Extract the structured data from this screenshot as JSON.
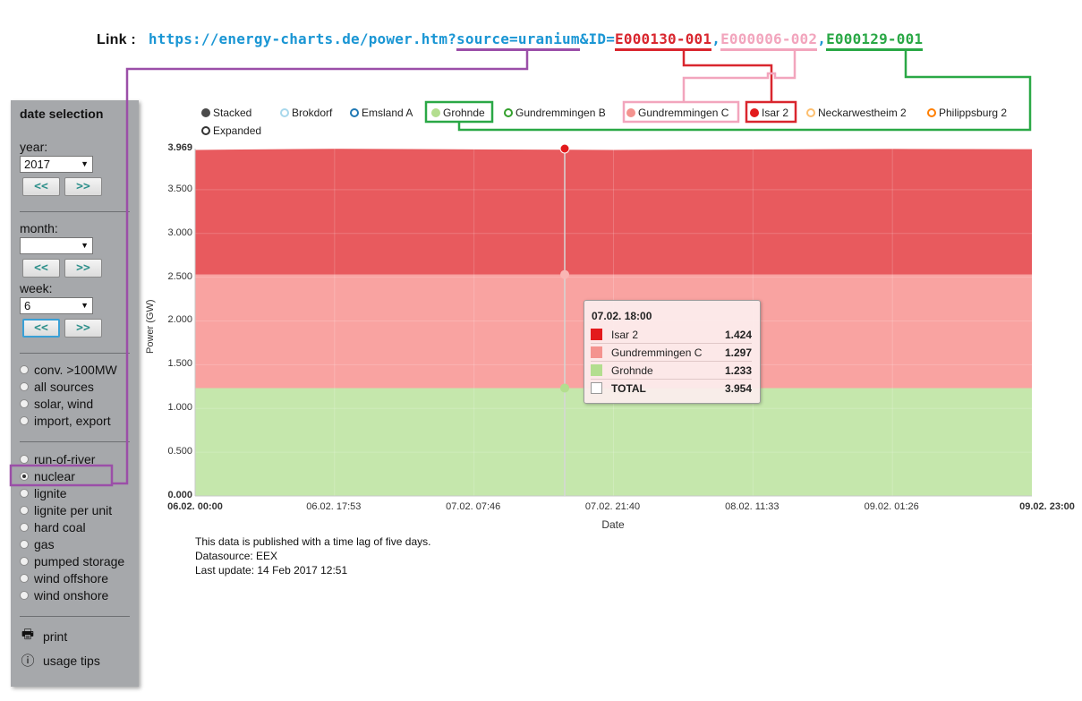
{
  "link": {
    "label": "Link :",
    "base": "https://energy-charts.de/power.htm?",
    "source_param": "source=uranium",
    "id_prefix": "&ID=",
    "ids": [
      "E000130-001",
      "E000006-002",
      "E000129-001"
    ],
    "separator": ","
  },
  "sidebar": {
    "title": "date selection",
    "year_label": "year:",
    "year_value": "2017",
    "month_label": "month:",
    "month_value": "",
    "week_label": "week:",
    "week_value": "6",
    "prev_label": "<<",
    "next_label": ">>",
    "sources": [
      "conv. >100MW",
      "all sources",
      "solar, wind",
      "import, export"
    ],
    "fuels": [
      "run-of-river",
      "nuclear",
      "lignite",
      "lignite per unit",
      "hard coal",
      "gas",
      "pumped storage",
      "wind offshore",
      "wind onshore"
    ],
    "selected_fuel": "nuclear",
    "print_label": "print",
    "tips_label": "usage tips"
  },
  "legend": [
    {
      "label": "Stacked",
      "color": "#4a4a4a",
      "filled": true
    },
    {
      "label": "Brokdorf",
      "color": "#a8d8ec",
      "filled": false
    },
    {
      "label": "Emsland A",
      "color": "#1f78b4",
      "filled": false
    },
    {
      "label": "Grohnde",
      "color": "#b3de8f",
      "filled": true
    },
    {
      "label": "Gundremmingen B",
      "color": "#33a02c",
      "filled": false
    },
    {
      "label": "Gundremmingen C",
      "color": "#f4938f",
      "filled": true
    },
    {
      "label": "Isar 2",
      "color": "#e31a1c",
      "filled": true
    },
    {
      "label": "Neckarwestheim 2",
      "color": "#fdbf6f",
      "filled": false
    },
    {
      "label": "Philippsburg 2",
      "color": "#ff7f00",
      "filled": false
    },
    {
      "label": "Expanded",
      "color": "#333333",
      "filled": false
    }
  ],
  "chart_data": {
    "type": "area",
    "stacked": true,
    "xlabel": "Date",
    "ylabel": "Power (GW)",
    "ylim": [
      0,
      3.969
    ],
    "yticks": [
      "0.000",
      "0.500",
      "1.000",
      "1.500",
      "2.000",
      "2.500",
      "3.000",
      "3.500",
      "3.969"
    ],
    "x_start_label": "06.02. 00:00",
    "x_end_label": "09.02. 23:00",
    "xticks": [
      "06.02. 17:53",
      "07.02. 07:46",
      "07.02. 21:40",
      "08.02. 11:33",
      "09.02. 01:26"
    ],
    "grid": true,
    "series": [
      {
        "name": "Grohnde",
        "color": "#c5e7ac",
        "values": [
          1.233,
          1.233,
          1.233,
          1.233,
          1.233,
          1.233,
          1.233
        ]
      },
      {
        "name": "Gundremmingen C",
        "color": "#f9a3a1",
        "values": [
          1.297,
          1.297,
          1.297,
          1.297,
          1.297,
          1.297,
          1.297
        ]
      },
      {
        "name": "Isar 2",
        "color": "#e85a5e",
        "values": [
          1.424,
          1.438,
          1.43,
          1.424,
          1.43,
          1.436,
          1.432
        ]
      }
    ],
    "highlight": {
      "x_label": "07.02. 18:00",
      "cumulative_values": [
        1.233,
        2.53,
        3.954
      ]
    }
  },
  "tooltip": {
    "title": "07.02. 18:00",
    "rows": [
      {
        "name": "Isar 2",
        "value": "1.424",
        "color": "#e31a1c"
      },
      {
        "name": "Gundremmingen C",
        "value": "1.297",
        "color": "#f4938f"
      },
      {
        "name": "Grohnde",
        "value": "1.233",
        "color": "#b3de8f"
      },
      {
        "name": "TOTAL",
        "value": "3.954",
        "color": "#ffffff"
      }
    ]
  },
  "notes": [
    "This data is published with a time lag of five days.",
    "Datasource: EEX",
    "Last update: 14 Feb 2017 12:51"
  ]
}
